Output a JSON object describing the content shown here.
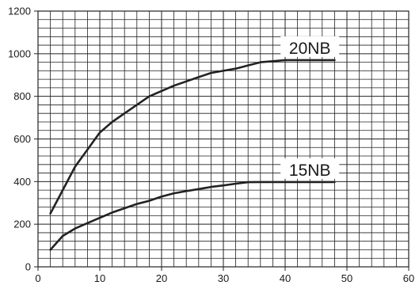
{
  "chart_data": {
    "type": "line",
    "title": "",
    "xlabel": "",
    "ylabel": "",
    "xlim": [
      0,
      60
    ],
    "ylim": [
      0,
      1200
    ],
    "x_ticks": [
      0,
      10,
      20,
      30,
      40,
      50,
      60
    ],
    "y_ticks": [
      0,
      200,
      400,
      600,
      800,
      1000,
      1200
    ],
    "grid": true,
    "legend": "none",
    "colors": {
      "line": "#222222",
      "grid": "#222222",
      "label_background": "#ffffff"
    },
    "series": [
      {
        "name": "20NB",
        "x": [
          2,
          4,
          6,
          8,
          10,
          12,
          14,
          16,
          18,
          20,
          22,
          24,
          26,
          28,
          30,
          32,
          34,
          36,
          38,
          40,
          42,
          44,
          46,
          48
        ],
        "values": [
          250,
          360,
          470,
          550,
          630,
          680,
          720,
          760,
          800,
          825,
          850,
          870,
          890,
          910,
          920,
          930,
          945,
          960,
          965,
          970,
          970,
          970,
          970,
          970
        ]
      },
      {
        "name": "15NB",
        "x": [
          2,
          4,
          6,
          8,
          10,
          12,
          14,
          16,
          18,
          20,
          22,
          24,
          26,
          28,
          30,
          32,
          34,
          36,
          38,
          40,
          42,
          44,
          46,
          48
        ],
        "values": [
          80,
          145,
          180,
          205,
          230,
          255,
          275,
          295,
          310,
          330,
          345,
          355,
          365,
          375,
          382,
          390,
          397,
          398,
          398,
          398,
          398,
          398,
          398,
          398
        ]
      }
    ]
  }
}
